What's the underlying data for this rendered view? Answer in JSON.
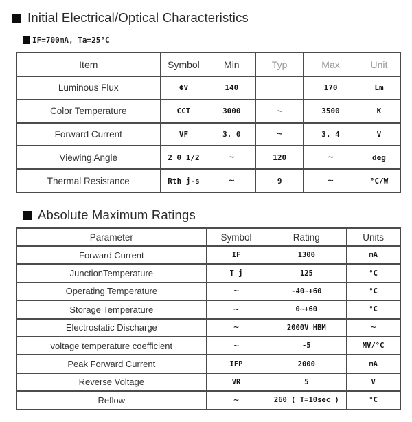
{
  "colors": {
    "background": "#ffffff",
    "text": "#222222",
    "border": "#4c4c4c",
    "faded_header": "#979797",
    "bullet": "#0d0d0d"
  },
  "icons": {
    "section_bullet": "black-square",
    "condition_bullet": "black-square"
  },
  "section1": {
    "title": "Initial Electrical/Optical Characteristics",
    "condition": "IF=700mA, Ta=25°C",
    "table": {
      "headers": [
        "Item",
        "Symbol",
        "Min",
        "Typ",
        "Max",
        "Unit"
      ],
      "rows": [
        [
          "Luminous Flux",
          "ΦV",
          "140",
          "",
          "170",
          "Lm"
        ],
        [
          "Color Temperature",
          "CCT",
          "3000",
          "~",
          "3500",
          "K"
        ],
        [
          "Forward Current",
          "VF",
          "3. 0",
          "~",
          "3. 4",
          "V"
        ],
        [
          "Viewing Angle",
          "2 θ 1/2",
          "~",
          "120",
          "~",
          "deg"
        ],
        [
          "Thermal Resistance",
          "Rth j-s",
          "~",
          "9",
          "~",
          "°C/W"
        ]
      ]
    }
  },
  "section2": {
    "title": "Absolute Maximum Ratings",
    "table": {
      "headers": [
        "Parameter",
        "Symbol",
        "Rating",
        "Units"
      ],
      "rows": [
        [
          "Forward Current",
          "IF",
          "1300",
          "mA"
        ],
        [
          "JunctionTemperature",
          "T j",
          "125",
          "°C"
        ],
        [
          "Operating Temperature",
          "~",
          "-40~+60",
          "°C"
        ],
        [
          "Storage Temperature",
          "~",
          "0~+60",
          "°C"
        ],
        [
          "Electrostatic Discharge",
          "~",
          "2000V HBM",
          "~"
        ],
        [
          "voltage temperature coefficient",
          "~",
          "-5",
          "MV/°C"
        ],
        [
          "Peak Forward Current",
          "IFP",
          "2000",
          "mA"
        ],
        [
          "Reverse Voltage",
          "VR",
          "5",
          "V"
        ],
        [
          "Reflow",
          "~",
          "260 ( T=10sec )",
          "°C"
        ]
      ]
    }
  }
}
